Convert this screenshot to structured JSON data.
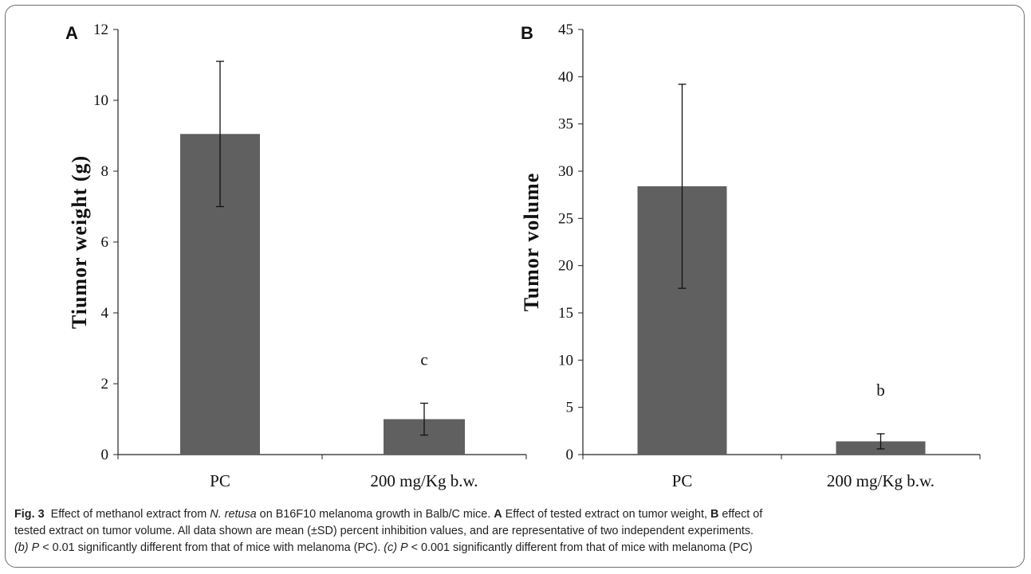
{
  "chart_data": [
    {
      "type": "bar",
      "panel_label": "A",
      "categories": [
        "PC",
        "200 mg/Kg b.w."
      ],
      "values": [
        9.05,
        1.0
      ],
      "errors": [
        2.05,
        0.45
      ],
      "significance": [
        "",
        "c"
      ],
      "ylabel": "Tiumor weight (g)",
      "ylim": [
        0,
        12
      ],
      "yticks": [
        "0",
        "2",
        "4",
        "6",
        "8",
        "10",
        "12"
      ],
      "bar_color": "#606060"
    },
    {
      "type": "bar",
      "panel_label": "B",
      "categories": [
        "PC",
        "200 mg/Kg b.w."
      ],
      "values": [
        28.4,
        1.4
      ],
      "errors": [
        10.8,
        0.8
      ],
      "significance": [
        "",
        "b"
      ],
      "ylabel": "Tumor volume",
      "ylim": [
        0,
        45
      ],
      "yticks": [
        "0",
        "5",
        "10",
        "15",
        "20",
        "25",
        "30",
        "35",
        "40",
        "45"
      ],
      "bar_color": "#606060"
    }
  ],
  "caption": {
    "fig_label": "Fig. 3",
    "line1_a": "Effect of methanol extract from ",
    "line1_species": "N. retusa",
    "line1_b": " on B16F10 melanoma growth in Balb/C mice. ",
    "line1_A": "A",
    "line1_c": " Effect of tested extract on tumor weight, ",
    "line1_B": "B",
    "line1_d": " effect of",
    "line2": "tested extract on tumor volume. All data shown are mean (±SD) percent inhibition values, and are representative of two independent experiments.",
    "line3_b": "(b)",
    "line3_P1": "P",
    "line3_t1": " < 0.01 significantly different from that of mice with melanoma (PC). ",
    "line3_c": "(c)",
    "line3_P2": "P",
    "line3_t2": " < 0.001 significantly different from that of mice with melanoma (PC)"
  }
}
